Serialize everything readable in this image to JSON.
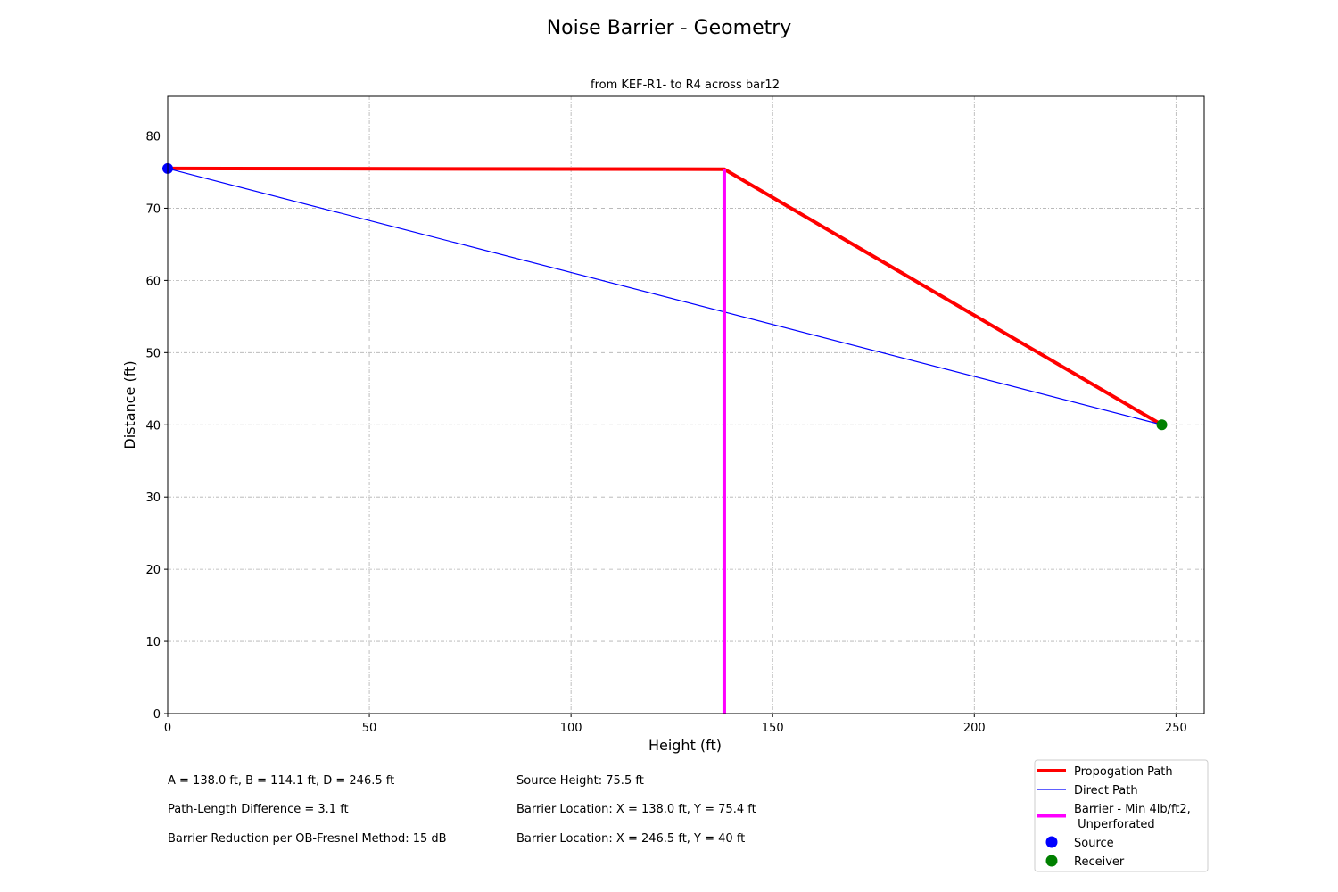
{
  "chart_data": {
    "type": "line",
    "title": "Noise Barrier - Geometry",
    "subtitle": "from KEF-R1- to R4 across bar12",
    "xlabel": "Height (ft)",
    "ylabel": "Distance (ft)",
    "xlim": [
      0,
      257
    ],
    "ylim": [
      0,
      85.5
    ],
    "x_ticks": [
      0,
      50,
      100,
      150,
      200,
      250
    ],
    "y_ticks": [
      0,
      10,
      20,
      30,
      40,
      50,
      60,
      70,
      80
    ],
    "grid": true,
    "legend_placement": "bottom-right",
    "series": [
      {
        "name": "Propogation Path",
        "color": "#ff0000",
        "kind": "line",
        "width": "thick",
        "points": [
          [
            0,
            75.5
          ],
          [
            138.0,
            75.4
          ],
          [
            246.5,
            40
          ]
        ]
      },
      {
        "name": "Direct Path",
        "color": "#0000ff",
        "kind": "line",
        "width": "thin",
        "points": [
          [
            0,
            75.5
          ],
          [
            246.5,
            40
          ]
        ]
      },
      {
        "name": "Barrier - Min 4lb/ft2,\n Unperforated",
        "color": "#ff00ff",
        "kind": "line",
        "width": "thick",
        "points": [
          [
            138.0,
            0
          ],
          [
            138.0,
            75.4
          ]
        ]
      },
      {
        "name": "Source",
        "color": "#0000ff",
        "kind": "marker",
        "points": [
          [
            0,
            75.5
          ]
        ]
      },
      {
        "name": "Receiver",
        "color": "#008000",
        "kind": "marker",
        "points": [
          [
            246.5,
            40
          ]
        ]
      }
    ]
  },
  "info": {
    "left": [
      "A = 138.0 ft, B = 114.1 ft, D = 246.5 ft",
      "Path-Length Difference = 3.1 ft",
      "Barrier Reduction per OB-Fresnel Method: 15 dB"
    ],
    "right": [
      "Source Height: 75.5 ft",
      "Barrier Location: X = 138.0 ft, Y = 75.4 ft",
      "Barrier Location: X = 246.5 ft, Y = 40 ft"
    ]
  }
}
